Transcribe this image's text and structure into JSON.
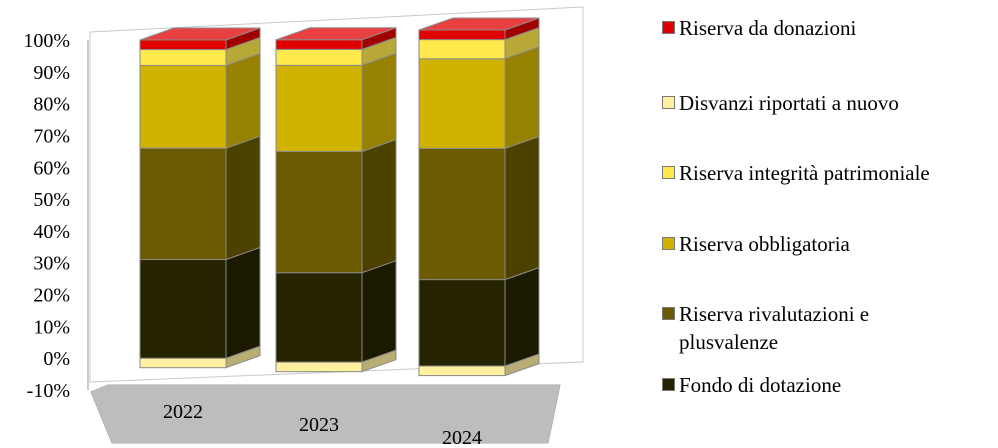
{
  "chart_data": {
    "type": "bar",
    "stacked": true,
    "three_d": true,
    "percent_axis": true,
    "categories": [
      "2022",
      "2023",
      "2024"
    ],
    "y_ticks": [
      "-10%",
      "0%",
      "10%",
      "20%",
      "30%",
      "40%",
      "50%",
      "60%",
      "70%",
      "80%",
      "90%",
      "100%"
    ],
    "ylim": [
      -10,
      100
    ],
    "grid": false,
    "legend_position": "right",
    "series": [
      {
        "name": "Fondo di dotazione",
        "color": "#262300",
        "values": [
          31,
          28,
          27
        ]
      },
      {
        "name": "Riserva rivalutazioni e plusvalenze",
        "color": "#6b5a00",
        "values": [
          35,
          38,
          41
        ]
      },
      {
        "name": "Riserva obbligatoria",
        "color": "#d0b300",
        "values": [
          26,
          27,
          28
        ]
      },
      {
        "name": "Riserva integrità patrimoniale",
        "color": "#ffe94d",
        "values": [
          5,
          5,
          6
        ]
      },
      {
        "name": "Disvanzi riportati a nuovo",
        "color": "#fff0a0",
        "values": [
          -3,
          -3,
          -3
        ]
      },
      {
        "name": "Riserva da donazioni",
        "color": "#e00000",
        "values": [
          3,
          3,
          3
        ]
      }
    ]
  }
}
